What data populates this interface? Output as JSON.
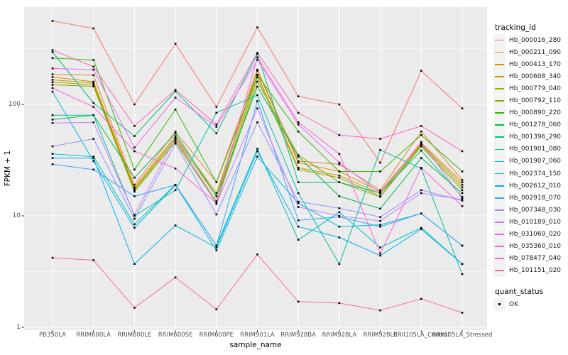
{
  "figure": {
    "y_axis_title": "FPKM + 1",
    "x_axis_title": "sample_name",
    "legend": {
      "title": "tracking_id"
    },
    "legend2": {
      "title": "quant_status",
      "entries": [
        {
          "label": "OK",
          "symbol": "black-square"
        }
      ]
    }
  },
  "colors": {
    "panel_bg": "#EBEBEB",
    "grid_major": "#FFFFFF",
    "grid_minor": "#FFFFFF",
    "point": "#000000",
    "tick_mark": "#333333",
    "tick_label": "#4D4D4D",
    "legend_key_bg": "#F2F2F2"
  },
  "chart_data": {
    "type": "line",
    "title": "",
    "xlabel": "sample_name",
    "ylabel": "FPKM + 1",
    "yscale": "log10",
    "ylim": [
      1,
      760
    ],
    "y_ticks": [
      1,
      10,
      100
    ],
    "y_minor_ticks": [
      3.1623,
      31.623,
      316.23
    ],
    "grid": true,
    "legend_position": "right",
    "point_marker": "black-square",
    "quant_status_all": "OK",
    "categories": [
      "PB350LA",
      "RRIM600LA",
      "RRIM600LE",
      "RRIM600SE",
      "RRIM600PE",
      "RRIM901LA",
      "RRIM928BA",
      "RRIM928LA",
      "RRIM928LE",
      "RRII105LA_Control",
      "RRII105LA_Stressed"
    ],
    "series": [
      {
        "name": "Hb_000016_280",
        "color": "#F8766D",
        "values": [
          560,
          480,
          100,
          350,
          95,
          490,
          118,
          100,
          30,
          200,
          92
        ]
      },
      {
        "name": "Hb_000211_090",
        "color": "#EA8331",
        "values": [
          186,
          183,
          19,
          57,
          20,
          205,
          31,
          29,
          17,
          57,
          21
        ]
      },
      {
        "name": "Hb_000413_170",
        "color": "#D89000",
        "values": [
          176,
          160,
          18,
          52,
          16,
          200,
          30,
          25,
          16.5,
          45,
          20
        ]
      },
      {
        "name": "Hb_000608_340",
        "color": "#C09B00",
        "values": [
          166,
          155,
          17.5,
          50,
          15,
          185,
          27,
          23,
          15.8,
          44,
          19
        ]
      },
      {
        "name": "Hb_000779_040",
        "color": "#A3A500",
        "values": [
          158,
          150,
          17,
          48,
          13.5,
          175,
          26,
          22,
          15,
          43,
          18
        ]
      },
      {
        "name": "Hb_000792_110",
        "color": "#7CAE00",
        "values": [
          150,
          145,
          16.5,
          46,
          13,
          160,
          35,
          20,
          14.8,
          42,
          17
        ]
      },
      {
        "name": "Hb_000890_220",
        "color": "#39B600",
        "values": [
          260,
          250,
          26,
          90,
          20,
          183,
          57,
          25,
          25,
          53,
          25
        ]
      },
      {
        "name": "Hb_001278_060",
        "color": "#00BB4E",
        "values": [
          73,
          80,
          22,
          55,
          15,
          144,
          34,
          15,
          11.6,
          33,
          16
        ]
      },
      {
        "name": "Hb_001396_290",
        "color": "#00BF7D",
        "values": [
          294,
          103,
          52,
          131,
          55,
          284,
          20,
          20,
          16,
          38.5,
          14.8
        ]
      },
      {
        "name": "Hb_001901_080",
        "color": "#00C1A3",
        "values": [
          80,
          80,
          10,
          17,
          84,
          121,
          16,
          3.7,
          39,
          26.6,
          3
        ]
      },
      {
        "name": "Hb_001907_060",
        "color": "#00BFC4",
        "values": [
          36,
          34,
          8.4,
          19,
          5.4,
          40,
          6.1,
          10.8,
          5.2,
          7.8,
          3.7
        ]
      },
      {
        "name": "Hb_002374_150",
        "color": "#00BAE0",
        "values": [
          130,
          31,
          7.8,
          18.9,
          4.9,
          34,
          13,
          8,
          8.3,
          10.5,
          5.4
        ]
      },
      {
        "name": "Hb_002612_010",
        "color": "#00B0F6",
        "values": [
          33,
          33,
          3.7,
          8.2,
          5.2,
          38,
          8,
          6.4,
          4.4,
          7.6,
          3.7
        ]
      },
      {
        "name": "Hb_002918_070",
        "color": "#35A2FF",
        "values": [
          29,
          26,
          15,
          18.9,
          5.4,
          107,
          9.1,
          9.8,
          8,
          10.5,
          5.4
        ]
      },
      {
        "name": "Hb_007348_030",
        "color": "#9590FF",
        "values": [
          42,
          49,
          9.4,
          44.5,
          10.3,
          69,
          13.4,
          11.7,
          9.75,
          17,
          13.7
        ]
      },
      {
        "name": "Hb_010189_010",
        "color": "#C77CFF",
        "values": [
          68,
          69,
          10.2,
          50,
          12.8,
          92,
          12,
          10,
          9,
          16,
          14
        ]
      },
      {
        "name": "Hb_031069_020",
        "color": "#E76BF3",
        "values": [
          210,
          205,
          41,
          115,
          63,
          251,
          66,
          30,
          16,
          46,
          14.4
        ]
      },
      {
        "name": "Hb_035360_010",
        "color": "#FA62DB",
        "values": [
          140,
          95,
          38,
          26.6,
          13,
          264,
          69,
          36,
          4.6,
          27,
          12.2
        ]
      },
      {
        "name": "Hb_078477_040",
        "color": "#FF62BC",
        "values": [
          306,
          218,
          64,
          135,
          66,
          290,
          84,
          53,
          49,
          64,
          38
        ]
      },
      {
        "name": "Hb_101151_020",
        "color": "#FF6A98",
        "values": [
          4.2,
          4.0,
          1.5,
          2.8,
          1.45,
          4.5,
          1.7,
          1.65,
          1.42,
          1.8,
          1.35
        ]
      }
    ]
  }
}
